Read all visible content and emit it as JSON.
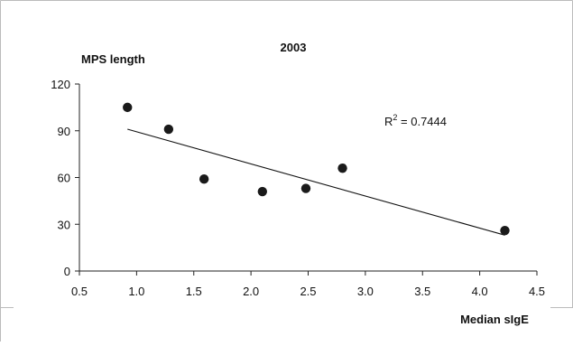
{
  "chart_data": {
    "type": "scatter",
    "title": "2003",
    "xlabel": "Median sIgE",
    "ylabel": "MPS length",
    "xlim": [
      0.5,
      4.5
    ],
    "ylim": [
      0,
      120
    ],
    "xticks": [
      "0.5",
      "1.0",
      "1.5",
      "2.0",
      "2.5",
      "3.0",
      "3.5",
      "4.0",
      "4.5"
    ],
    "yticks": [
      "0",
      "30",
      "60",
      "90",
      "120"
    ],
    "points": [
      {
        "x": 0.92,
        "y": 105
      },
      {
        "x": 1.28,
        "y": 91
      },
      {
        "x": 1.59,
        "y": 59
      },
      {
        "x": 2.1,
        "y": 51
      },
      {
        "x": 2.48,
        "y": 53
      },
      {
        "x": 2.8,
        "y": 66
      },
      {
        "x": 4.22,
        "y": 26
      }
    ],
    "trendline": {
      "type": "linear",
      "from": {
        "x": 0.92,
        "y": 91
      },
      "to": {
        "x": 4.22,
        "y": 23
      },
      "label_prefix": "R",
      "label_sup": "2",
      "label_suffix": " = 0.7444"
    },
    "grid": false,
    "legend": "none"
  }
}
